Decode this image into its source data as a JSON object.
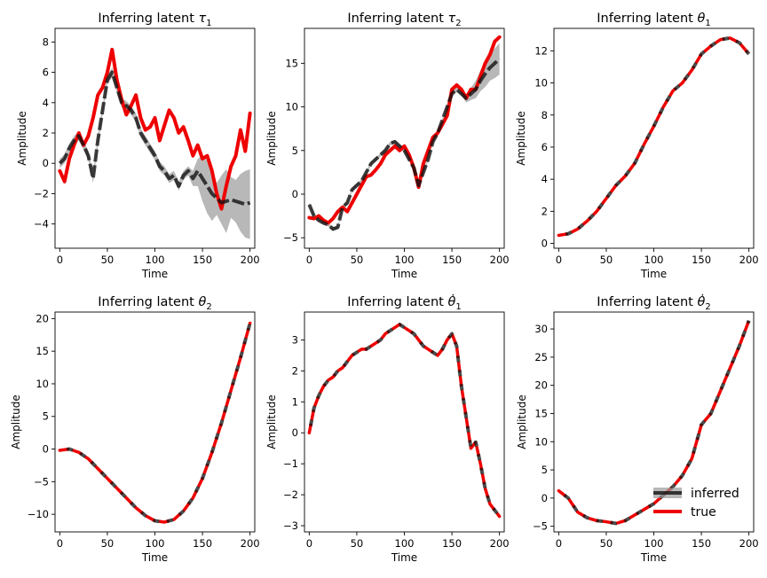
{
  "legend": {
    "inferred_label": "inferred",
    "true_label": "true",
    "placement": "lower-right of last panel"
  },
  "colors": {
    "true": "#ee0000",
    "inferred": "#111111",
    "band": "#9a9a9a"
  },
  "chart_data": [
    {
      "type": "line",
      "title_prefix": "Inferring latent ",
      "title_symbol": "τ",
      "title_sub": "1",
      "xlabel": "Time",
      "ylabel": "Amplitude",
      "xlim": [
        -5,
        205
      ],
      "ylim": [
        -5.6,
        8.9
      ],
      "xticks": [
        0,
        50,
        100,
        150,
        200
      ],
      "yticks": [
        -4,
        -2,
        0,
        2,
        4,
        6,
        8
      ],
      "x": [
        0,
        5,
        10,
        15,
        20,
        25,
        30,
        35,
        40,
        45,
        50,
        55,
        60,
        65,
        70,
        75,
        80,
        85,
        90,
        95,
        100,
        105,
        110,
        115,
        120,
        125,
        130,
        135,
        140,
        145,
        150,
        155,
        160,
        165,
        170,
        175,
        180,
        185,
        190,
        195,
        200
      ],
      "series": [
        {
          "role": "true",
          "values": [
            -0.5,
            -1.2,
            0.3,
            1.2,
            2.0,
            1.2,
            1.8,
            3.0,
            4.5,
            5.0,
            6.0,
            7.5,
            5.5,
            4.2,
            3.2,
            3.8,
            4.5,
            3.0,
            2.2,
            2.4,
            3.0,
            1.5,
            2.5,
            3.5,
            3.0,
            2.0,
            2.4,
            1.5,
            0.5,
            1.2,
            0.3,
            0.5,
            -0.5,
            -2.0,
            -3.0,
            -1.5,
            -0.2,
            0.5,
            2.2,
            0.8,
            3.3
          ]
        },
        {
          "role": "inferred",
          "values": [
            0.0,
            0.3,
            1.0,
            1.5,
            1.8,
            1.2,
            0.5,
            -1.0,
            1.5,
            3.5,
            5.5,
            6.0,
            5.0,
            4.0,
            3.8,
            3.5,
            3.0,
            2.0,
            1.5,
            1.0,
            0.5,
            -0.2,
            -0.5,
            -1.0,
            -0.8,
            -1.5,
            -0.8,
            -0.5,
            -1.0,
            -0.5,
            -1.0,
            -1.5,
            -2.0,
            -2.3,
            -2.6,
            -2.5,
            -2.4,
            -2.5,
            -2.6,
            -2.7,
            -2.6
          ]
        }
      ],
      "band": {
        "lower": [
          -0.3,
          0.0,
          0.7,
          1.2,
          1.5,
          0.9,
          0.2,
          -1.3,
          1.2,
          3.2,
          5.2,
          5.7,
          4.7,
          3.7,
          3.5,
          3.2,
          2.7,
          1.7,
          1.2,
          0.7,
          0.2,
          -0.5,
          -0.8,
          -1.3,
          -1.1,
          -1.8,
          -1.1,
          -0.8,
          -1.5,
          -1.5,
          -2.5,
          -3.3,
          -3.8,
          -3.4,
          -4.0,
          -4.6,
          -3.6,
          -3.9,
          -4.5,
          -4.9,
          -5.0
        ],
        "upper": [
          0.3,
          0.6,
          1.3,
          1.8,
          2.1,
          1.5,
          0.8,
          -0.7,
          1.8,
          3.8,
          5.8,
          6.3,
          5.3,
          4.3,
          4.1,
          3.8,
          3.3,
          2.3,
          1.8,
          1.3,
          0.8,
          0.1,
          -0.2,
          -0.7,
          -0.5,
          -1.2,
          -0.5,
          -0.2,
          -0.5,
          0.3,
          0.5,
          0.2,
          -0.3,
          -1.3,
          -0.8,
          -0.4,
          -0.9,
          -1.1,
          -0.7,
          -0.5,
          -0.4
        ]
      }
    },
    {
      "type": "line",
      "title_prefix": "Inferring latent ",
      "title_symbol": "τ",
      "title_sub": "2",
      "xlabel": "Time",
      "ylabel": "Amplitude",
      "xlim": [
        -5,
        205
      ],
      "ylim": [
        -6.2,
        19.0
      ],
      "xticks": [
        0,
        50,
        100,
        150,
        200
      ],
      "yticks": [
        -5,
        0,
        5,
        10,
        15
      ],
      "x": [
        0,
        5,
        10,
        15,
        20,
        25,
        30,
        35,
        40,
        45,
        50,
        55,
        60,
        65,
        70,
        75,
        80,
        85,
        90,
        95,
        100,
        105,
        110,
        115,
        120,
        125,
        130,
        135,
        140,
        145,
        150,
        155,
        160,
        165,
        170,
        175,
        180,
        185,
        190,
        195,
        200
      ],
      "series": [
        {
          "role": "true",
          "values": [
            -2.7,
            -2.8,
            -2.5,
            -3.0,
            -3.3,
            -2.8,
            -2.0,
            -1.5,
            -2.0,
            -1.0,
            0.0,
            1.0,
            2.0,
            2.2,
            2.8,
            3.5,
            4.5,
            5.0,
            5.5,
            5.0,
            5.5,
            4.5,
            3.0,
            0.8,
            3.5,
            5.0,
            6.5,
            7.0,
            8.0,
            9.0,
            12.0,
            12.5,
            12.0,
            11.0,
            12.0,
            12.0,
            13.5,
            15.0,
            16.0,
            17.5,
            18.0
          ]
        },
        {
          "role": "inferred",
          "values": [
            -1.2,
            -2.5,
            -3.0,
            -3.3,
            -3.5,
            -4.0,
            -3.8,
            -1.5,
            -1.0,
            0.5,
            1.0,
            1.5,
            2.5,
            3.5,
            4.0,
            4.5,
            5.0,
            5.8,
            6.0,
            5.5,
            5.0,
            4.0,
            3.0,
            1.0,
            2.5,
            4.0,
            6.0,
            7.0,
            8.5,
            10.0,
            11.5,
            12.0,
            11.5,
            11.0,
            11.5,
            12.0,
            13.0,
            13.8,
            14.5,
            15.0,
            15.5
          ]
        }
      ],
      "band": {
        "lower": [
          -1.4,
          -2.7,
          -3.2,
          -3.5,
          -3.7,
          -4.2,
          -4.0,
          -1.7,
          -1.2,
          0.3,
          0.8,
          1.3,
          2.3,
          3.3,
          3.8,
          4.3,
          4.8,
          5.6,
          5.8,
          5.3,
          4.8,
          3.8,
          2.8,
          0.8,
          2.3,
          3.8,
          5.8,
          6.8,
          8.3,
          9.8,
          11.3,
          11.8,
          11.3,
          10.5,
          10.8,
          11.0,
          11.8,
          12.3,
          13.0,
          13.3,
          13.7
        ],
        "upper": [
          -1.0,
          -2.3,
          -2.8,
          -3.1,
          -3.3,
          -3.8,
          -3.6,
          -1.3,
          -0.8,
          0.7,
          1.2,
          1.7,
          2.7,
          3.7,
          4.2,
          4.7,
          5.2,
          6.0,
          6.2,
          5.7,
          5.2,
          4.2,
          3.2,
          1.2,
          2.7,
          4.2,
          6.2,
          7.2,
          8.7,
          10.2,
          11.7,
          12.2,
          11.7,
          11.5,
          12.2,
          13.0,
          14.2,
          15.3,
          16.0,
          16.7,
          17.3
        ]
      }
    },
    {
      "type": "line",
      "title_prefix": "Inferring latent ",
      "title_symbol": "θ",
      "title_sub": "1",
      "xlabel": "Time",
      "ylabel": "Amplitude",
      "xlim": [
        -5,
        205
      ],
      "ylim": [
        -0.3,
        13.4
      ],
      "xticks": [
        0,
        50,
        100,
        150,
        200
      ],
      "yticks": [
        0,
        2,
        4,
        6,
        8,
        10,
        12
      ],
      "x": [
        0,
        10,
        20,
        30,
        40,
        50,
        60,
        70,
        80,
        90,
        100,
        110,
        120,
        130,
        140,
        150,
        160,
        170,
        180,
        190,
        200
      ],
      "series": [
        {
          "role": "true",
          "values": [
            0.5,
            0.6,
            0.9,
            1.4,
            2.0,
            2.8,
            3.6,
            4.2,
            5.0,
            6.2,
            7.3,
            8.5,
            9.5,
            10.0,
            10.8,
            11.8,
            12.3,
            12.7,
            12.8,
            12.5,
            11.8
          ]
        },
        {
          "role": "inferred",
          "values": [
            0.5,
            0.6,
            0.9,
            1.4,
            2.0,
            2.8,
            3.6,
            4.2,
            5.0,
            6.2,
            7.3,
            8.5,
            9.5,
            10.0,
            10.8,
            11.8,
            12.3,
            12.7,
            12.8,
            12.5,
            11.8
          ]
        }
      ]
    },
    {
      "type": "line",
      "title_prefix": "Inferring latent ",
      "title_symbol": "θ",
      "title_sub": "2",
      "xlabel": "Time",
      "ylabel": "Amplitude",
      "xlim": [
        -5,
        205
      ],
      "ylim": [
        -12.7,
        21.0
      ],
      "xticks": [
        0,
        50,
        100,
        150,
        200
      ],
      "yticks": [
        -10,
        -5,
        0,
        5,
        10,
        15,
        20
      ],
      "x": [
        0,
        10,
        20,
        30,
        40,
        50,
        60,
        70,
        80,
        90,
        100,
        110,
        120,
        130,
        140,
        150,
        160,
        170,
        180,
        190,
        200
      ],
      "series": [
        {
          "role": "true",
          "values": [
            -0.2,
            0.0,
            -0.5,
            -1.5,
            -3.0,
            -4.5,
            -6.0,
            -7.5,
            -9.0,
            -10.2,
            -11.0,
            -11.2,
            -10.8,
            -9.5,
            -7.5,
            -4.5,
            -0.5,
            4.0,
            9.0,
            14.0,
            19.3
          ]
        },
        {
          "role": "inferred",
          "values": [
            -0.2,
            0.0,
            -0.5,
            -1.5,
            -3.0,
            -4.5,
            -6.0,
            -7.5,
            -9.0,
            -10.2,
            -11.0,
            -11.2,
            -10.8,
            -9.5,
            -7.5,
            -4.5,
            -0.5,
            4.0,
            9.0,
            14.0,
            19.3
          ]
        }
      ]
    },
    {
      "type": "line",
      "title_prefix": "Inferring latent ",
      "title_symbol": "θ̇",
      "title_sub": "1",
      "xlabel": "Time",
      "ylabel": "Amplitude",
      "xlim": [
        -5,
        205
      ],
      "ylim": [
        -3.2,
        3.9
      ],
      "xticks": [
        0,
        50,
        100,
        150,
        200
      ],
      "yticks": [
        -3,
        -2,
        -1,
        0,
        1,
        2,
        3
      ],
      "x": [
        0,
        5,
        10,
        15,
        20,
        25,
        30,
        35,
        40,
        45,
        50,
        55,
        60,
        65,
        70,
        75,
        80,
        85,
        90,
        95,
        100,
        105,
        110,
        115,
        120,
        125,
        130,
        135,
        140,
        145,
        150,
        155,
        160,
        165,
        170,
        175,
        180,
        185,
        190,
        195,
        200
      ],
      "series": [
        {
          "role": "true",
          "values": [
            0.0,
            0.8,
            1.2,
            1.5,
            1.7,
            1.8,
            2.0,
            2.1,
            2.3,
            2.5,
            2.6,
            2.7,
            2.7,
            2.8,
            2.9,
            3.0,
            3.2,
            3.3,
            3.4,
            3.5,
            3.4,
            3.3,
            3.2,
            3.0,
            2.8,
            2.7,
            2.6,
            2.5,
            2.7,
            3.0,
            3.2,
            2.8,
            1.5,
            0.5,
            -0.5,
            -0.3,
            -1.0,
            -1.8,
            -2.3,
            -2.5,
            -2.7
          ]
        },
        {
          "role": "inferred",
          "values": [
            0.0,
            0.8,
            1.2,
            1.5,
            1.7,
            1.8,
            2.0,
            2.1,
            2.3,
            2.5,
            2.6,
            2.7,
            2.7,
            2.8,
            2.9,
            3.0,
            3.2,
            3.3,
            3.4,
            3.5,
            3.4,
            3.3,
            3.2,
            3.0,
            2.8,
            2.7,
            2.6,
            2.5,
            2.7,
            3.0,
            3.2,
            2.8,
            1.5,
            0.5,
            -0.5,
            -0.3,
            -1.0,
            -1.8,
            -2.3,
            -2.5,
            -2.7
          ]
        }
      ]
    },
    {
      "type": "line",
      "title_prefix": "Inferring latent ",
      "title_symbol": "θ̇",
      "title_sub": "2",
      "xlabel": "Time",
      "ylabel": "Amplitude",
      "xlim": [
        -5,
        205
      ],
      "ylim": [
        -6.0,
        33.0
      ],
      "xticks": [
        0,
        50,
        100,
        150,
        200
      ],
      "yticks": [
        -5,
        0,
        5,
        10,
        15,
        20,
        25,
        30
      ],
      "x": [
        0,
        10,
        20,
        30,
        40,
        50,
        60,
        70,
        80,
        90,
        100,
        110,
        120,
        130,
        140,
        150,
        160,
        170,
        180,
        190,
        200
      ],
      "series": [
        {
          "role": "true",
          "values": [
            1.3,
            0.0,
            -2.5,
            -3.5,
            -4.0,
            -4.2,
            -4.5,
            -4.0,
            -3.0,
            -2.0,
            -1.0,
            0.5,
            2.0,
            4.0,
            7.0,
            13.0,
            15.0,
            19.0,
            23.0,
            27.0,
            31.5
          ]
        },
        {
          "role": "inferred",
          "values": [
            1.3,
            0.0,
            -2.5,
            -3.5,
            -4.0,
            -4.2,
            -4.5,
            -4.0,
            -3.0,
            -2.0,
            -1.0,
            0.5,
            2.0,
            4.0,
            7.0,
            13.0,
            15.0,
            19.0,
            23.0,
            27.0,
            31.5
          ]
        }
      ]
    }
  ]
}
